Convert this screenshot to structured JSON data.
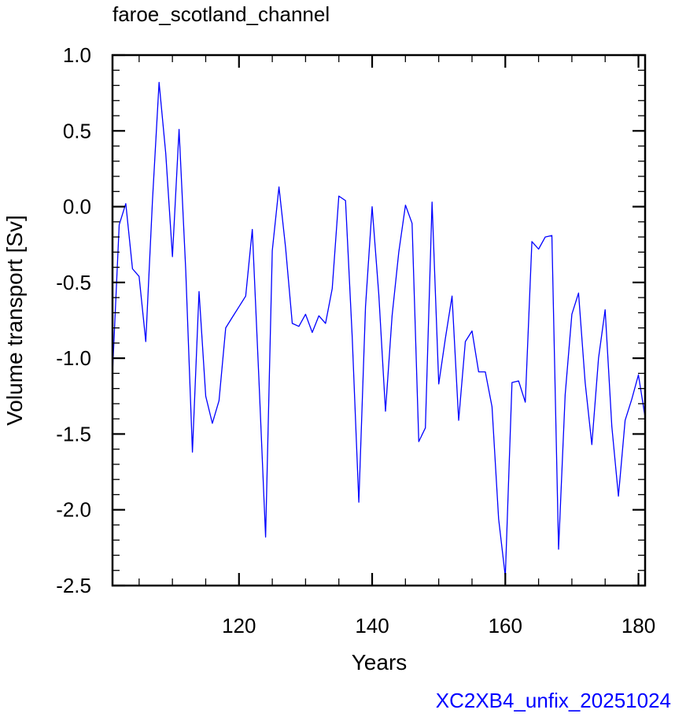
{
  "chart_data": {
    "type": "line",
    "title": "faroe_scotland_channel",
    "xlabel": "Years",
    "ylabel": "Volume transport [Sv]",
    "caption": "XC2XB4_unfix_20251024",
    "xlim": [
      101,
      181
    ],
    "ylim": [
      -2.5,
      1.0
    ],
    "x_ticks": [
      120,
      140,
      160,
      180
    ],
    "y_ticks": [
      1.0,
      0.5,
      0.0,
      -0.5,
      -1.0,
      -1.5,
      -2.0,
      -2.5
    ],
    "x_tick_labels": [
      "120",
      "140",
      "160",
      "180"
    ],
    "y_tick_labels": [
      "1.0",
      "0.5",
      "0.0",
      "-0.5",
      "-1.0",
      "-1.5",
      "-2.0",
      "-2.5"
    ],
    "grid": false,
    "colors": {
      "line": "#0000ff",
      "caption": "#0000ff",
      "axes": "#000000"
    },
    "series": [
      {
        "x": [
          101,
          102,
          103,
          104,
          105,
          106,
          107,
          108,
          109,
          110,
          111,
          112,
          113,
          114,
          115,
          116,
          117,
          118,
          119,
          120,
          121,
          122,
          123,
          124,
          125,
          126,
          127,
          128,
          129,
          130,
          131,
          132,
          133,
          134,
          135,
          136,
          137,
          138,
          139,
          140,
          141,
          142,
          143,
          144,
          145,
          146,
          147,
          148,
          149,
          150,
          151,
          152,
          153,
          154,
          155,
          156,
          157,
          158,
          159,
          160,
          161,
          162,
          163,
          164,
          165,
          166,
          167,
          168,
          169,
          170,
          171,
          172,
          173,
          174,
          175,
          176,
          177,
          178,
          179,
          180,
          181
        ],
        "values": [
          -1.1,
          -0.12,
          0.02,
          -0.41,
          -0.46,
          -0.89,
          0.04,
          0.82,
          0.35,
          -0.33,
          0.51,
          -0.42,
          -1.62,
          -0.56,
          -1.25,
          -1.43,
          -1.28,
          -0.8,
          -0.73,
          -0.66,
          -0.59,
          -0.15,
          -1.15,
          -2.18,
          -0.29,
          0.13,
          -0.27,
          -0.77,
          -0.79,
          -0.71,
          -0.83,
          -0.72,
          -0.77,
          -0.54,
          0.07,
          0.04,
          -0.86,
          -1.95,
          -0.66,
          0.0,
          -0.58,
          -1.35,
          -0.72,
          -0.3,
          0.01,
          -0.11,
          -1.55,
          -1.46,
          0.03,
          -1.17,
          -0.87,
          -0.59,
          -1.41,
          -0.89,
          -0.82,
          -1.09,
          -1.09,
          -1.32,
          -2.06,
          -2.44,
          -1.16,
          -1.15,
          -1.29,
          -0.23,
          -0.28,
          -0.2,
          -0.19,
          -2.26,
          -1.24,
          -0.71,
          -0.57,
          -1.16,
          -1.57,
          -1.0,
          -0.68,
          -1.45,
          -1.91,
          -1.41,
          -1.27,
          -1.11,
          -1.39
        ]
      }
    ]
  }
}
